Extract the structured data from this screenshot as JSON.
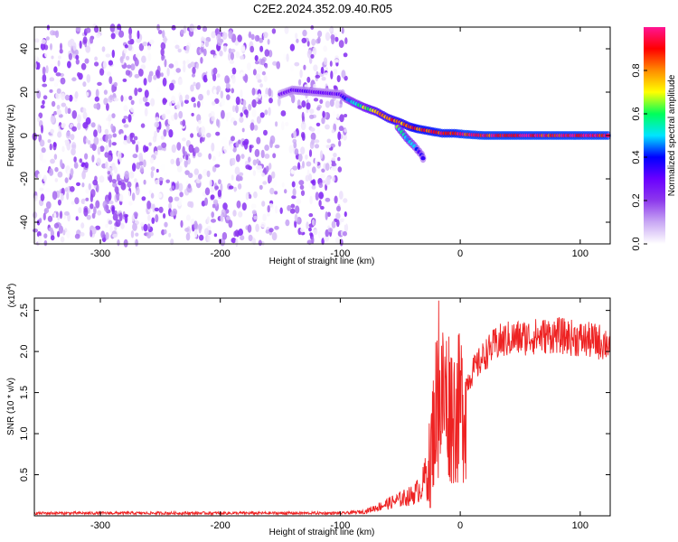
{
  "title": "C2E2.2024.352.09.40.R05",
  "chart_data": [
    {
      "type": "heatmap",
      "xlabel": "Height of straight line (km)",
      "ylabel": "Frequency (Hz)",
      "xlim": [
        -355,
        125
      ],
      "ylim": [
        -50,
        50
      ],
      "x_ticks": [
        -300,
        -200,
        -100,
        0,
        100
      ],
      "y_ticks": [
        -40,
        -20,
        0,
        20,
        40
      ],
      "x_tick_labels": [
        "-300",
        "-200",
        "-100",
        "0",
        "100"
      ],
      "y_tick_labels": [
        "-40",
        "-20",
        "0",
        "20",
        "40"
      ],
      "grid": false,
      "colorbar": {
        "label": "Normalized spectral amplitude",
        "range": [
          0,
          1
        ],
        "ticks": [
          0.0,
          0.2,
          0.4,
          0.6,
          0.8
        ],
        "tick_labels": [
          "0.0",
          "0.2",
          "0.4",
          "0.6",
          "0.8"
        ],
        "colormap": [
          "#ffffff",
          "#c9a8f4",
          "#8d39ec",
          "#6a00ff",
          "#0000ff",
          "#00e5ff",
          "#00ff5a",
          "#ffff00",
          "#ff8c00",
          "#ff0000",
          "#ff1493"
        ]
      },
      "noise_region": {
        "x_range": [
          -355,
          -95
        ],
        "y_range": [
          -50,
          50
        ],
        "amplitude_range": [
          0.0,
          0.25
        ],
        "gap_x_range": [
          -153,
          -140
        ]
      },
      "signal_trace": [
        {
          "x": -150,
          "y": 19,
          "amplitude": 0.25
        },
        {
          "x": -140,
          "y": 21,
          "amplitude": 0.3
        },
        {
          "x": -100,
          "y": 19,
          "amplitude": 0.3
        },
        {
          "x": -95,
          "y": 17,
          "amplitude": 0.4
        },
        {
          "x": -88,
          "y": 15,
          "amplitude": 0.55
        },
        {
          "x": -80,
          "y": 13,
          "amplitude": 0.65
        },
        {
          "x": -70,
          "y": 11,
          "amplitude": 0.75
        },
        {
          "x": -60,
          "y": 8,
          "amplitude": 0.8
        },
        {
          "x": -50,
          "y": 6,
          "amplitude": 0.85
        },
        {
          "x": -42,
          "y": 4,
          "amplitude": 0.85
        },
        {
          "x": -35,
          "y": 3,
          "amplitude": 0.9
        },
        {
          "x": -25,
          "y": 2,
          "amplitude": 0.9
        },
        {
          "x": -15,
          "y": 1,
          "amplitude": 0.92
        },
        {
          "x": -5,
          "y": 1,
          "amplitude": 0.92
        },
        {
          "x": 5,
          "y": 0.5,
          "amplitude": 0.95
        },
        {
          "x": 20,
          "y": 0,
          "amplitude": 0.95
        },
        {
          "x": 40,
          "y": 0,
          "amplitude": 0.95
        },
        {
          "x": 60,
          "y": 0,
          "amplitude": 0.95
        },
        {
          "x": 80,
          "y": 0,
          "amplitude": 0.95
        },
        {
          "x": 100,
          "y": 0,
          "amplitude": 0.95
        },
        {
          "x": 125,
          "y": 0,
          "amplitude": 0.95
        }
      ],
      "signal_branch": [
        {
          "x": -52,
          "y": 4,
          "amplitude": 0.6
        },
        {
          "x": -45,
          "y": -1,
          "amplitude": 0.55
        },
        {
          "x": -38,
          "y": -5,
          "amplitude": 0.45
        },
        {
          "x": -32,
          "y": -9,
          "amplitude": 0.35
        },
        {
          "x": -30,
          "y": -12,
          "amplitude": 0.3
        }
      ]
    },
    {
      "type": "line",
      "xlabel": "Height of straight line (km)",
      "ylabel": "SNR (10 * v/v)",
      "yscale_label": "(x10",
      "yscale_exponent": "4",
      "yscale_suffix": ")",
      "xlim": [
        -355,
        125
      ],
      "ylim": [
        0,
        2.65
      ],
      "x_ticks": [
        -300,
        -200,
        -100,
        0,
        100
      ],
      "y_ticks": [
        0.5,
        1.0,
        1.5,
        2.0,
        2.5
      ],
      "x_tick_labels": [
        "-300",
        "-200",
        "-100",
        "0",
        "100"
      ],
      "y_tick_labels": [
        "0.5",
        "1.0",
        "1.5",
        "2.0",
        "2.5"
      ],
      "grid": false,
      "line_color": "#ee2222",
      "series_profile": [
        {
          "x": -355,
          "y": 0.03
        },
        {
          "x": -100,
          "y": 0.03
        },
        {
          "x": -80,
          "y": 0.05
        },
        {
          "x": -70,
          "y": 0.1
        },
        {
          "x": -60,
          "y": 0.15
        },
        {
          "x": -50,
          "y": 0.2
        },
        {
          "x": -40,
          "y": 0.25
        },
        {
          "x": -32,
          "y": 0.35
        },
        {
          "x": -27,
          "y": 0.6
        },
        {
          "x": -23,
          "y": 1.1
        },
        {
          "x": -20,
          "y": 1.5
        },
        {
          "x": -17,
          "y": 1.5
        },
        {
          "x": -14,
          "y": 1.6
        },
        {
          "x": -10,
          "y": 1.55
        },
        {
          "x": -5,
          "y": 1.4
        },
        {
          "x": 0,
          "y": 1.45
        },
        {
          "x": 10,
          "y": 1.75
        },
        {
          "x": 20,
          "y": 1.95
        },
        {
          "x": 30,
          "y": 2.1
        },
        {
          "x": 40,
          "y": 2.15
        },
        {
          "x": 60,
          "y": 2.18
        },
        {
          "x": 80,
          "y": 2.2
        },
        {
          "x": 100,
          "y": 2.15
        },
        {
          "x": 125,
          "y": 2.1
        }
      ],
      "series_peaks": [
        {
          "x": -18,
          "y": 2.62
        },
        {
          "x": -25,
          "y": 0.1
        }
      ]
    }
  ]
}
